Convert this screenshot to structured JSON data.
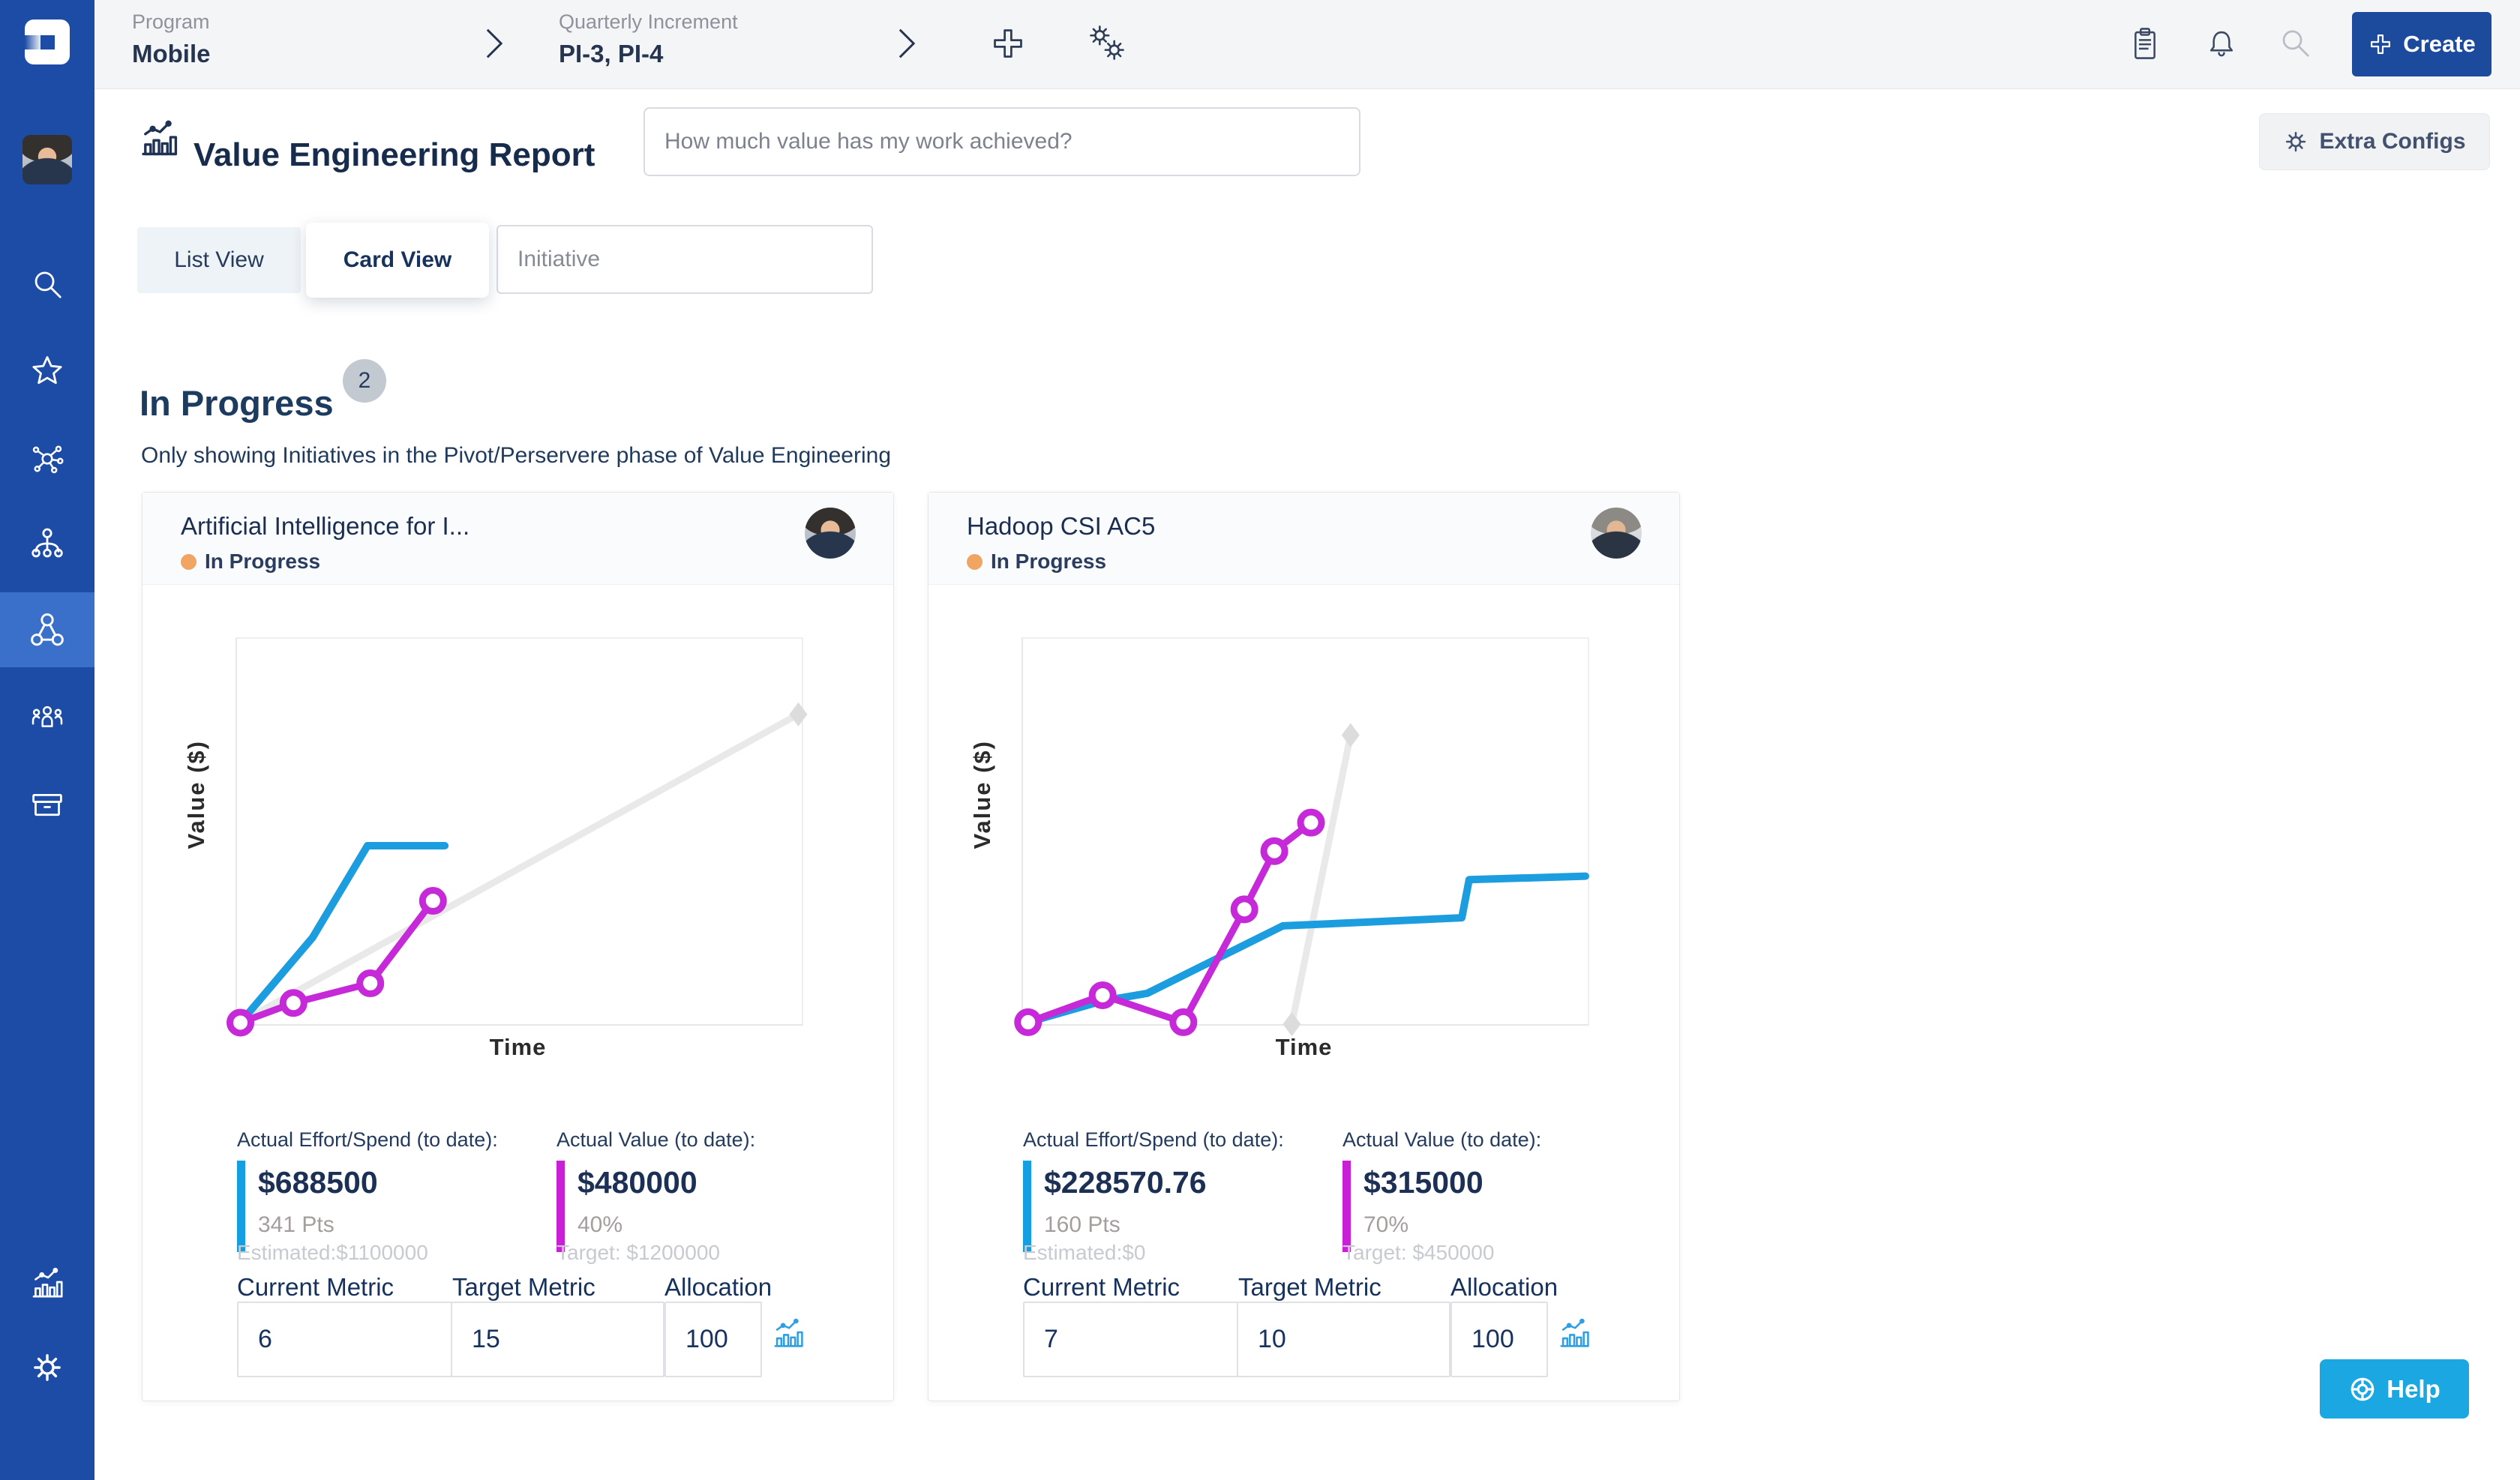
{
  "colors": {
    "sidebar_bg": "#1d4ca6",
    "sidebar_active_bg": "#3a70c9",
    "topbar_bg": "#f4f5f7",
    "create_btn_bg": "#1c4b9e",
    "help_btn_bg": "#1ba7e2",
    "status_in_progress": "#f0a562",
    "effort_bar": "#149fe2",
    "value_bar": "#c91fd6",
    "badge_bg": "#c3c9d0"
  },
  "topbar": {
    "program_label": "Program",
    "program_value": "Mobile",
    "qi_label": "Quarterly Increment",
    "qi_value": "PI-3, PI-4",
    "create_label": "Create"
  },
  "sidebar": {
    "items": [
      "user-avatar",
      "search",
      "favorites-star",
      "network-hub",
      "org-tree",
      "value-network (active)",
      "team",
      "archive-box",
      "reports-chart",
      "settings-gear"
    ]
  },
  "header": {
    "title": "Value Engineering Report",
    "question_placeholder": "How much value has my work achieved?",
    "extra_configs_label": "Extra Configs"
  },
  "tabs": {
    "list_view": "List View",
    "card_view": "Card View",
    "initiative_placeholder": "Initiative"
  },
  "section": {
    "title": "In Progress",
    "count": "2",
    "subtitle": "Only showing Initiatives in the Pivot/Perservere phase of Value Engineering"
  },
  "cards": [
    {
      "title": "Artificial Intelligence for I...",
      "status": "In Progress",
      "ylabel": "Value ($)",
      "xlabel": "Time",
      "effort_label": "Actual Effort/Spend (to date):",
      "effort_value": "$688500",
      "effort_sub": "341 Pts",
      "effort_note": "Estimated:$1100000",
      "value_label": "Actual Value (to date):",
      "value_value": "$480000",
      "value_sub": "40%",
      "value_note": "Target: $1200000",
      "current_metric_label": "Current Metric",
      "current_metric": "6",
      "target_metric_label": "Target Metric",
      "target_metric": "15",
      "allocation_label": "Allocation",
      "allocation": "100"
    },
    {
      "title": "Hadoop CSI AC5",
      "status": "In Progress",
      "ylabel": "Value ($)",
      "xlabel": "Time",
      "effort_label": "Actual Effort/Spend (to date):",
      "effort_value": "$228570.76",
      "effort_sub": "160 Pts",
      "effort_note": "Estimated:$0",
      "value_label": "Actual Value (to date):",
      "value_value": "$315000",
      "value_sub": "70%",
      "value_note": "Target: $450000",
      "current_metric_label": "Current Metric",
      "current_metric": "7",
      "target_metric_label": "Target Metric",
      "target_metric": "10",
      "allocation_label": "Allocation",
      "allocation": "100"
    }
  ],
  "chart_data": [
    {
      "type": "line",
      "title": "Artificial Intelligence for I... — value vs time",
      "xlabel": "Time",
      "ylabel": "Value ($)",
      "axis_ticks": "none (axes unlabeled; points are % of plot width/height, y up)",
      "grid": false,
      "legend": "none",
      "series": [
        {
          "name": "planned-target-value",
          "color": "#e9e9e9",
          "marker": "diamond-end",
          "marker_color": "#dcdcdc",
          "width": 9,
          "points_pct": [
            [
              0,
              0
            ],
            [
              99.4,
              80.4
            ]
          ]
        },
        {
          "name": "actual-effort-spend",
          "color": "#1b9ddf",
          "marker": "none",
          "width": 10,
          "points_pct": [
            [
              0.6,
              0.4
            ],
            [
              13.4,
              22.5
            ],
            [
              23.1,
              46.3
            ],
            [
              36.8,
              46.3
            ]
          ]
        },
        {
          "name": "actual-value",
          "color": "#c629d8",
          "marker": "circle",
          "width": 9,
          "points_pct": [
            [
              0.6,
              0.4
            ],
            [
              10.0,
              5.5
            ],
            [
              23.6,
              10.6
            ],
            [
              34.7,
              32.0
            ]
          ]
        }
      ]
    },
    {
      "type": "line",
      "title": "Hadoop CSI AC5 — value vs time",
      "xlabel": "Time",
      "ylabel": "Value ($)",
      "axis_ticks": "none (axes unlabeled; points are % of plot width/height, y up)",
      "grid": false,
      "legend": "none",
      "series": [
        {
          "name": "planned-target-value",
          "color": "#e9e9e9",
          "marker": "diamond-ends",
          "marker_color": "#dcdcdc",
          "width": 9,
          "points_pct": [
            [
              47.6,
              0
            ],
            [
              58.0,
              75.0
            ]
          ]
        },
        {
          "name": "actual-effort-spend",
          "color": "#1b9ddf",
          "marker": "none",
          "width": 10,
          "points_pct": [
            [
              0.9,
              0.5
            ],
            [
              14.0,
              6.0
            ],
            [
              22.0,
              8.0
            ],
            [
              46.0,
              25.5
            ],
            [
              77.7,
              27.6
            ],
            [
              79.0,
              37.5
            ],
            [
              99.6,
              38.4
            ]
          ]
        },
        {
          "name": "actual-value",
          "color": "#c629d8",
          "marker": "circle",
          "width": 9,
          "points_pct": [
            [
              0.9,
              0.5
            ],
            [
              14.1,
              7.5
            ],
            [
              28.4,
              0.5
            ],
            [
              39.2,
              29.8
            ],
            [
              44.5,
              44.9
            ],
            [
              51.0,
              52.3
            ]
          ]
        }
      ]
    }
  ],
  "help": {
    "label": "Help"
  }
}
